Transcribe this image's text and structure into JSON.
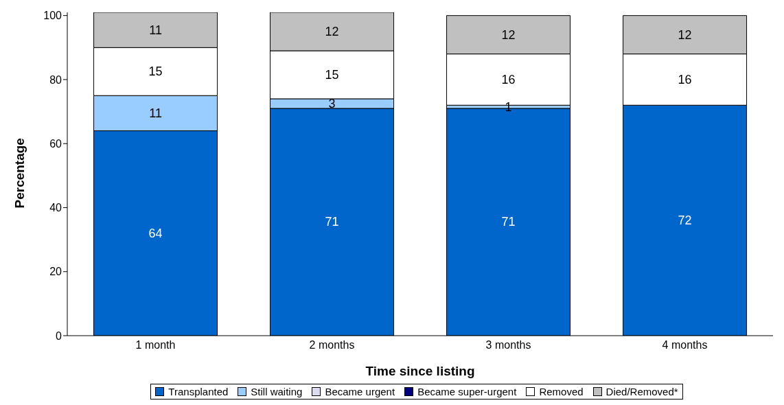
{
  "chart_data": {
    "type": "bar",
    "stacked": true,
    "xlabel": "Time since listing",
    "ylabel": "Percentage",
    "categories": [
      "1 month",
      "2 months",
      "3 months",
      "4 months"
    ],
    "series": [
      {
        "name": "Transplanted",
        "color": "#0066cc",
        "values": [
          64,
          71,
          71,
          72
        ],
        "value_labels": [
          "64",
          "71",
          "71",
          "72"
        ]
      },
      {
        "name": "Still waiting",
        "color": "#99ccff",
        "values": [
          11,
          3,
          1,
          0
        ],
        "value_labels": [
          "11",
          "3",
          "1",
          null
        ]
      },
      {
        "name": "Became urgent",
        "color": "#dcdcf0",
        "values": [
          0,
          0,
          0,
          0
        ],
        "value_labels": [
          null,
          null,
          null,
          null
        ]
      },
      {
        "name": "Became super-urgent",
        "color": "#000080",
        "values": [
          0,
          0,
          0,
          0
        ],
        "value_labels": [
          null,
          null,
          null,
          null
        ]
      },
      {
        "name": "Removed",
        "color": "#ffffff",
        "values": [
          15,
          15,
          16,
          16
        ],
        "value_labels": [
          "15",
          "15",
          "16",
          "16"
        ]
      },
      {
        "name": "Died/Removed*",
        "color": "#c0c0c0",
        "values": [
          11,
          12,
          12,
          12
        ],
        "value_labels": [
          "11",
          "12",
          "12",
          "12"
        ]
      }
    ],
    "ylim": [
      0,
      101
    ],
    "yticks": [
      0,
      20,
      40,
      60,
      80,
      100
    ],
    "grid": false,
    "legend": "bottom"
  }
}
